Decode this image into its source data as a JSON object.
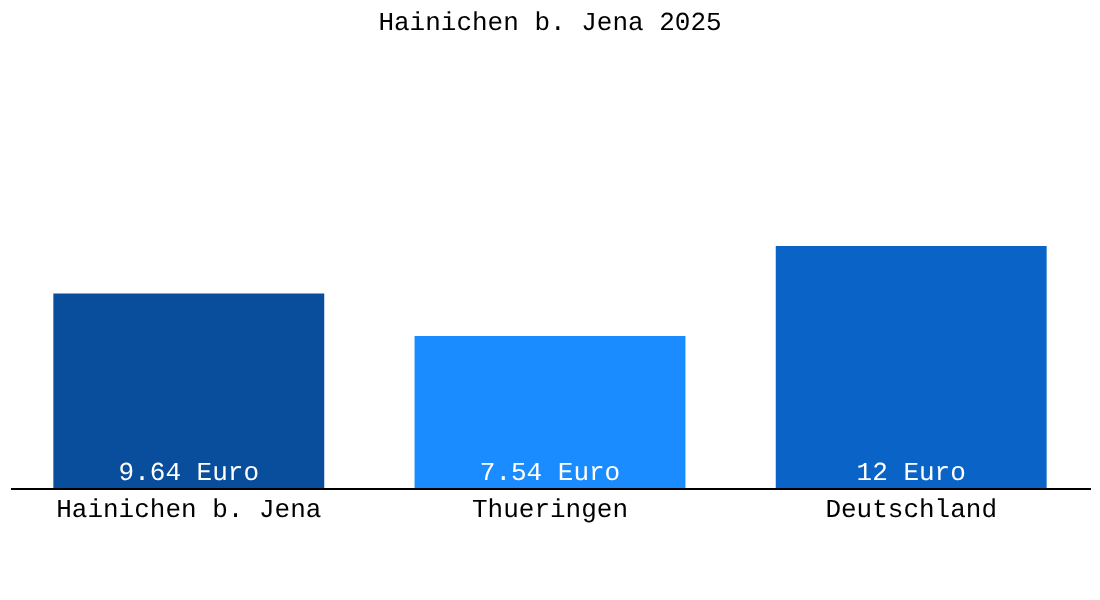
{
  "chart_data": {
    "type": "bar",
    "title": "Hainichen b. Jena 2025",
    "categories": [
      "Hainichen b. Jena",
      "Thueringen",
      "Deutschland"
    ],
    "values": [
      9.64,
      7.54,
      12
    ],
    "colors": [
      "#084e9c",
      "#1a8cff",
      "#0a64c8"
    ],
    "value_labels": [
      "9.64 Euro",
      "7.54 Euro",
      "12 Euro"
    ],
    "grid": false
  }
}
